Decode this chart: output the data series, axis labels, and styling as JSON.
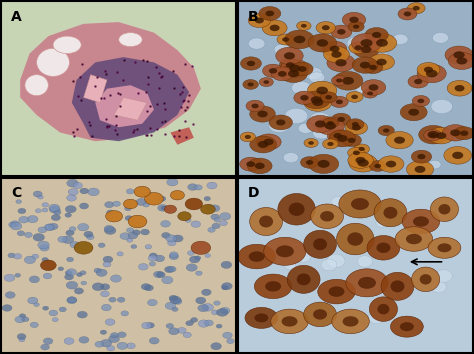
{
  "figsize": [
    4.74,
    3.54
  ],
  "dpi": 100,
  "panels": [
    "A",
    "B",
    "C",
    "D"
  ],
  "panel_colors": {
    "A": {
      "bg": "#c8d5b5",
      "tissue_pink": "#c87888",
      "tissue_dark": "#604878",
      "tissue_bone": "#e8a0b0",
      "fat_fill": "#f0e8e8",
      "fat_edge": "#d09898",
      "bone_fill": "#e8b0b8",
      "bone_edge": "#c08888",
      "red_artifact": "#c03030",
      "cell_colors": [
        "#400030",
        "#500040",
        "#300020"
      ]
    },
    "B": {
      "bg": "#9ab0c5",
      "brown1": "#8b4513",
      "brown2": "#a0522d",
      "brown3": "#c47820",
      "nucleus": "#3a1800",
      "neg_fill": "#c8d8e8",
      "neg_edge": "#7090a8"
    },
    "C": {
      "bg": "#cfc0a5",
      "neg_colors": [
        "#587098",
        "#6880a8",
        "#7890b8",
        "#8898c5"
      ],
      "neg_edge": "#405878",
      "brown_colors": [
        "#8b4513",
        "#a0522d",
        "#c47820",
        "#8b6010"
      ],
      "brown_edge": "#5a2800"
    },
    "D": {
      "bg": "#b8ccdc",
      "brown_colors": [
        "#8b4010",
        "#9b5020",
        "#7b3a10",
        "#a06020",
        "#b07030"
      ],
      "brown_edge": "#5a2000",
      "nucleus": "#4a1800",
      "neg_fill": "#d0e0ee",
      "neg_edge": "#8090a0"
    }
  },
  "label_fontsize": 10,
  "border_color": "#000000",
  "border_width": 1.5
}
